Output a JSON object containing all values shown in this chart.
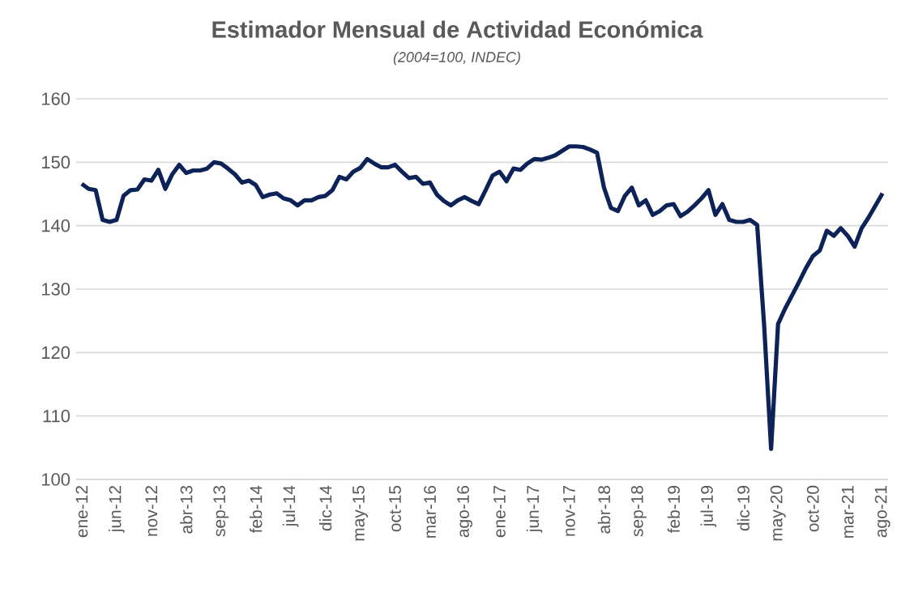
{
  "chart_data": {
    "type": "line",
    "title": "Estimador Mensual de Actividad Económica",
    "subtitle": "(2004=100,  INDEC)",
    "categories": [
      "ene-12",
      null,
      null,
      null,
      null,
      "jun-12",
      null,
      null,
      null,
      null,
      "nov-12",
      null,
      null,
      null,
      null,
      "abr-13",
      null,
      null,
      null,
      null,
      "sep-13",
      null,
      null,
      null,
      null,
      "feb-14",
      null,
      null,
      null,
      null,
      "jul-14",
      null,
      null,
      null,
      null,
      "dic-14",
      null,
      null,
      null,
      null,
      "may-15",
      null,
      null,
      null,
      null,
      "oct-15",
      null,
      null,
      null,
      null,
      "mar-16",
      null,
      null,
      null,
      null,
      "ago-16",
      null,
      null,
      null,
      null,
      "ene-17",
      null,
      null,
      null,
      null,
      "jun-17",
      null,
      null,
      null,
      null,
      "nov-17",
      null,
      null,
      null,
      null,
      "abr-18",
      null,
      null,
      null,
      null,
      "sep-18",
      null,
      null,
      null,
      null,
      "feb-19",
      null,
      null,
      null,
      null,
      "jul-19",
      null,
      null,
      null,
      null,
      "dic-19",
      null,
      null,
      null,
      null,
      "may-20",
      null,
      null,
      null,
      null,
      "oct-20",
      null,
      null,
      null,
      null,
      "mar-21",
      null,
      null,
      null,
      null,
      "ago-21"
    ],
    "series": [
      {
        "color": "#0d2358",
        "values": [
          146.6,
          145.8,
          145.6,
          140.9,
          140.6,
          140.9,
          144.7,
          145.6,
          145.7,
          147.3,
          147.1,
          148.8,
          145.8,
          148.1,
          149.6,
          148.3,
          148.7,
          148.7,
          149.0,
          150.0,
          149.8,
          149.0,
          148.1,
          146.8,
          147.1,
          146.4,
          144.5,
          144.9,
          145.1,
          144.3,
          144.0,
          143.2,
          144.0,
          144.0,
          144.5,
          144.7,
          145.6,
          147.7,
          147.3,
          148.5,
          149.1,
          150.5,
          149.8,
          149.2,
          149.2,
          149.6,
          148.5,
          147.5,
          147.7,
          146.6,
          146.8,
          144.9,
          143.9,
          143.2,
          144.0,
          144.5,
          143.9,
          143.4,
          145.6,
          147.9,
          148.5,
          147.0,
          149.0,
          148.8,
          149.8,
          150.5,
          150.4,
          150.7,
          151.1,
          151.8,
          152.5,
          152.5,
          152.4,
          152.0,
          151.5,
          146.0,
          142.8,
          142.3,
          144.7,
          146.0,
          143.2,
          144.0,
          141.7,
          142.3,
          143.2,
          143.4,
          141.5,
          142.2,
          143.2,
          144.3,
          145.6,
          141.7,
          143.4,
          140.9,
          140.6,
          140.6,
          140.9,
          140.1,
          124.3,
          104.8,
          124.5,
          126.9,
          129.0,
          131.1,
          133.3,
          135.2,
          136.1,
          139.2,
          138.4,
          139.6,
          138.4,
          136.7,
          139.6,
          141.3,
          143.2,
          145.1
        ]
      }
    ],
    "ylim": [
      100,
      160
    ],
    "yticks": [
      100,
      110,
      120,
      130,
      140,
      150,
      160
    ],
    "grid": "y",
    "legend": false,
    "marker": "none",
    "line_style": "solid"
  }
}
